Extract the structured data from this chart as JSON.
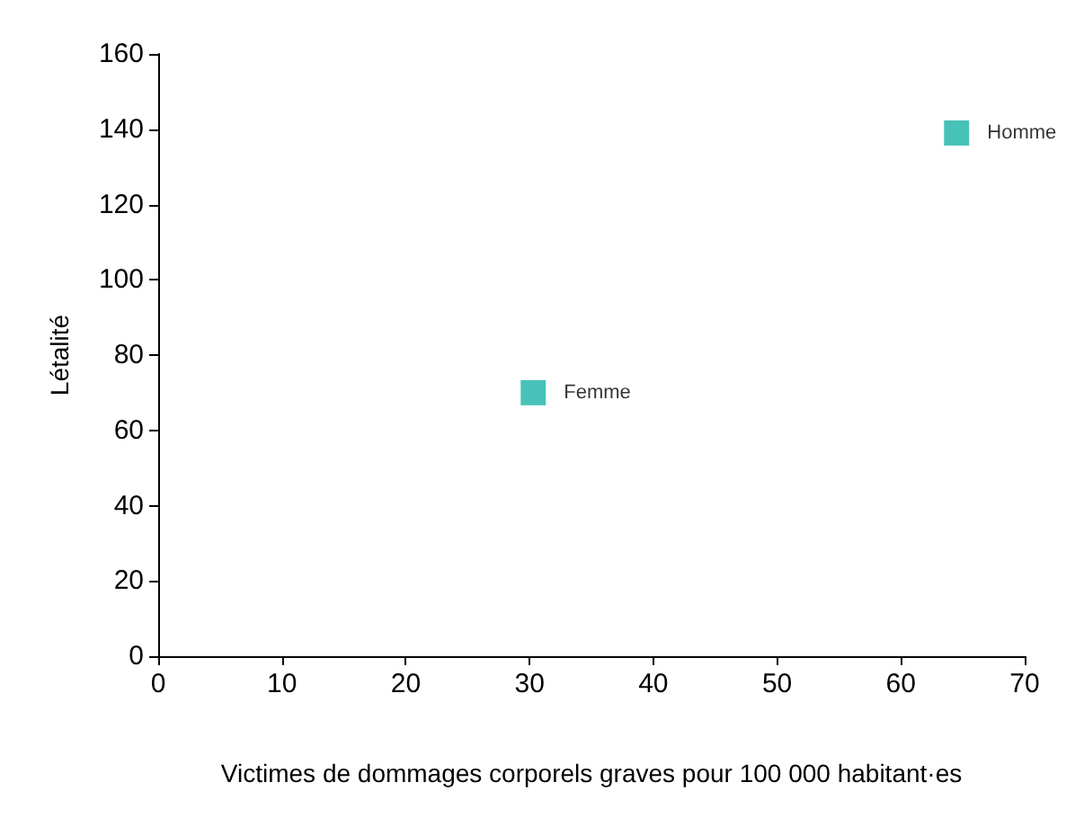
{
  "chart_data": {
    "type": "scatter",
    "xlabel": "Victimes de dommages corporels graves pour 100 000 habitant·es",
    "ylabel": "Létalité",
    "xlim": [
      0,
      70
    ],
    "xticks": [
      0,
      10,
      20,
      30,
      40,
      50,
      60,
      70
    ],
    "ylim": [
      0,
      160
    ],
    "yticks": [
      0,
      20,
      40,
      60,
      80,
      100,
      120,
      140,
      160
    ],
    "grid": false,
    "legend": false,
    "marker": "square",
    "series": [
      {
        "name": "Femme",
        "color": "#1ab3a6",
        "x": [
          30.3
        ],
        "values": [
          70
        ]
      },
      {
        "name": "Homme",
        "color": "#1ab3a6",
        "x": [
          64.5
        ],
        "values": [
          139
        ]
      }
    ]
  }
}
